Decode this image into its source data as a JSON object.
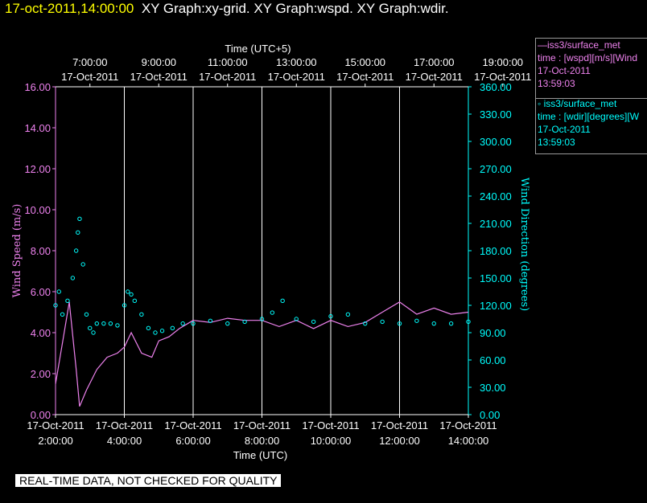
{
  "title": {
    "timestamp": "17-oct-2011,14:00:00",
    "text": "XY Graph:xy-grid.  XY Graph:wspd.  XY Graph:wdir."
  },
  "legend": {
    "wspd": {
      "name": "—iss3/surface_met",
      "desc": "time : [wspd][m/s][Wind",
      "date": "17-Oct-2011",
      "time": "13:59:03"
    },
    "wdir": {
      "name": "◦  iss3/surface_met",
      "desc": "time : [wdir][degrees][W",
      "date": "17-Oct-2011",
      "time": "13:59:03"
    }
  },
  "disclaimer": "REAL-TIME DATA, NOT CHECKED FOR QUALITY",
  "colors": {
    "wspd": "#ee82ee",
    "wdir": "#00ffff",
    "grid": "#ffffff",
    "title_timestamp": "#ffff00"
  },
  "chart_data": {
    "type": "line",
    "top_axis": {
      "label": "Time (UTC+5)",
      "ticks": [
        {
          "time": "7:00:00",
          "date": "17-Oct-2011"
        },
        {
          "time": "9:00:00",
          "date": "17-Oct-2011"
        },
        {
          "time": "11:00:00",
          "date": "17-Oct-2011"
        },
        {
          "time": "13:00:00",
          "date": "17-Oct-2011"
        },
        {
          "time": "15:00:00",
          "date": "17-Oct-2011"
        },
        {
          "time": "17:00:00",
          "date": "17-Oct-2011"
        },
        {
          "time": "19:00:00",
          "date": "17-Oct-2011"
        }
      ]
    },
    "bottom_axis": {
      "label": "Time (UTC)",
      "xlim": [
        "17-Oct-2011 02:00:00",
        "17-Oct-2011 14:00:00"
      ],
      "ticks": [
        {
          "time": "2:00:00",
          "date": "17-Oct-2011"
        },
        {
          "time": "4:00:00",
          "date": "17-Oct-2011"
        },
        {
          "time": "6:00:00",
          "date": "17-Oct-2011"
        },
        {
          "time": "8:00:00",
          "date": "17-Oct-2011"
        },
        {
          "time": "10:00:00",
          "date": "17-Oct-2011"
        },
        {
          "time": "12:00:00",
          "date": "17-Oct-2011"
        },
        {
          "time": "14:00:00",
          "date": "17-Oct-2011"
        }
      ]
    },
    "left_axis": {
      "label": "Wind Speed (m/s)",
      "ylim": [
        0,
        16
      ],
      "ticks": [
        "0.00",
        "2.00",
        "4.00",
        "6.00",
        "8.00",
        "10.00",
        "12.00",
        "14.00",
        "16.00"
      ]
    },
    "right_axis": {
      "label": "Wind Direction (degrees)",
      "ylim": [
        0,
        360
      ],
      "ticks": [
        "0.00",
        "30.00",
        "60.00",
        "90.00",
        "120.00",
        "150.00",
        "180.00",
        "210.00",
        "240.00",
        "270.00",
        "300.00",
        "330.00",
        "360.00"
      ]
    },
    "grid": "vertical",
    "series": [
      {
        "name": "iss3/surface_met wspd",
        "type": "line",
        "axis": "left",
        "x_hours_utc": [
          2.0,
          2.2,
          2.4,
          2.6,
          2.7,
          2.9,
          3.2,
          3.5,
          3.8,
          4.0,
          4.2,
          4.5,
          4.8,
          5.0,
          5.3,
          5.6,
          5.8,
          6.0,
          6.5,
          7.0,
          7.5,
          8.0,
          8.5,
          9.0,
          9.5,
          10.0,
          10.5,
          11.0,
          11.5,
          12.0,
          12.5,
          13.0,
          13.5,
          14.0
        ],
        "values": [
          1.5,
          3.5,
          5.5,
          2.2,
          0.4,
          1.2,
          2.2,
          2.8,
          3.0,
          3.3,
          4.0,
          3.0,
          2.8,
          3.6,
          3.8,
          4.2,
          4.4,
          4.6,
          4.5,
          4.7,
          4.6,
          4.6,
          4.3,
          4.6,
          4.2,
          4.6,
          4.3,
          4.5,
          5.0,
          5.5,
          4.9,
          5.2,
          4.9,
          5.0
        ]
      },
      {
        "name": "iss3/surface_met wdir",
        "type": "scatter",
        "axis": "right",
        "x_hours_utc": [
          2.0,
          2.1,
          2.2,
          2.35,
          2.5,
          2.6,
          2.65,
          2.7,
          2.8,
          2.9,
          3.0,
          3.1,
          3.2,
          3.4,
          3.6,
          3.8,
          4.0,
          4.1,
          4.2,
          4.3,
          4.5,
          4.7,
          4.9,
          5.1,
          5.4,
          5.7,
          6.0,
          6.5,
          7.0,
          7.5,
          8.0,
          8.3,
          8.6,
          9.0,
          9.5,
          10.0,
          10.5,
          11.0,
          11.5,
          12.0,
          12.5,
          13.0,
          13.5,
          14.0
        ],
        "values": [
          120,
          135,
          110,
          125,
          150,
          180,
          200,
          215,
          165,
          110,
          95,
          90,
          100,
          100,
          100,
          98,
          120,
          135,
          132,
          125,
          110,
          95,
          90,
          92,
          95,
          100,
          100,
          103,
          100,
          102,
          105,
          112,
          125,
          105,
          102,
          108,
          110,
          100,
          102,
          100,
          103,
          100,
          100,
          102
        ]
      }
    ]
  }
}
